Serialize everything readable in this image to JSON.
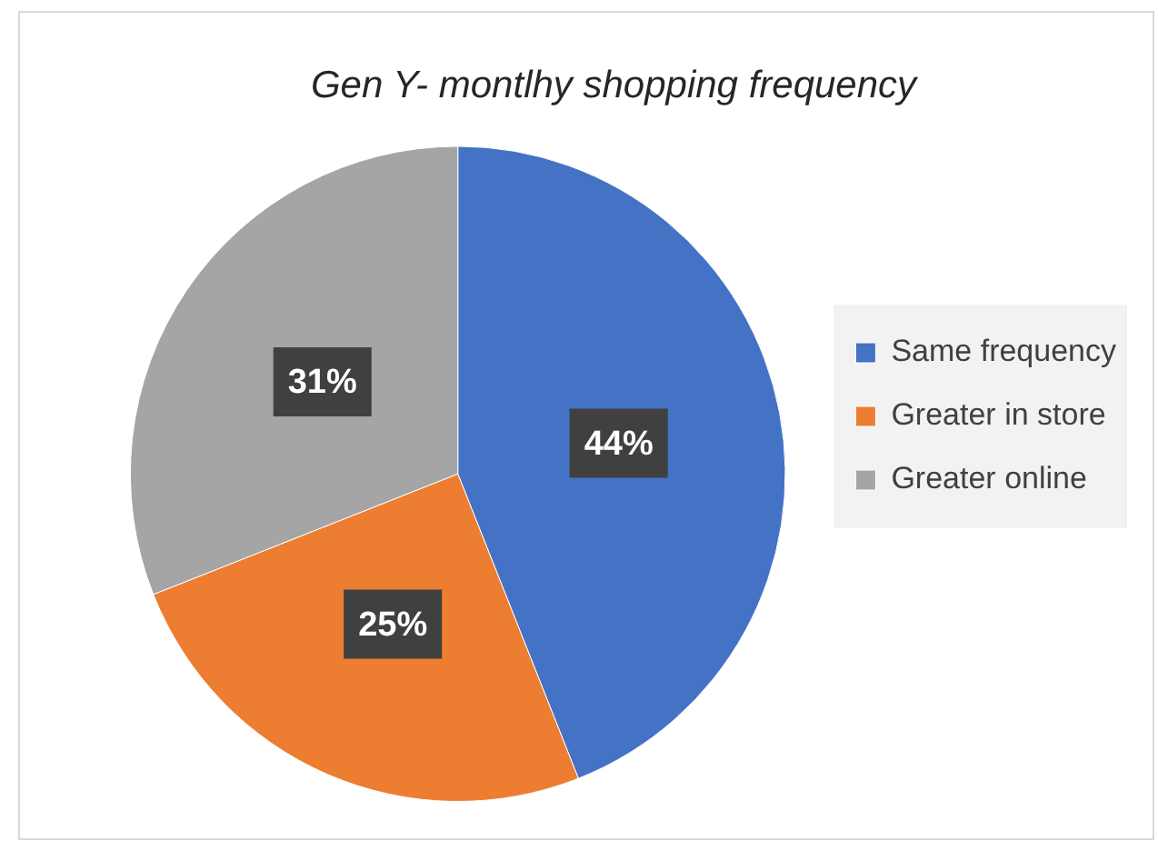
{
  "chart_data": {
    "type": "pie",
    "title": "Gen Y- montlhy shopping frequency",
    "categories": [
      "Same frequency",
      "Greater in store",
      "Greater online"
    ],
    "values": [
      44,
      25,
      31
    ],
    "colors": [
      "#4472c4",
      "#ed7d31",
      "#a5a5a5"
    ],
    "value_labels": [
      "44%",
      "25%",
      "31%"
    ],
    "legend": "right"
  }
}
